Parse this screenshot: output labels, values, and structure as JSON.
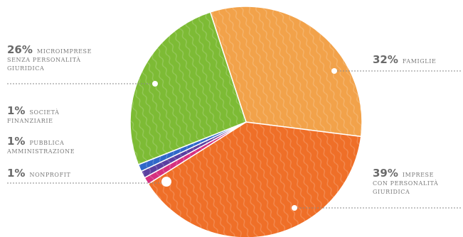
{
  "chart_data": {
    "type": "pie",
    "title": "",
    "slices": [
      {
        "pct": "32%",
        "value": 32,
        "label": "FAMIGLIE",
        "color": "#f2a24a"
      },
      {
        "pct": "39%",
        "value": 39,
        "label": "IMPRESE CON PERSONALITÀ GIURIDICA",
        "color": "#ef6f28"
      },
      {
        "pct": "1%",
        "value": 1,
        "label": "NONPROFIT",
        "color": "#d6307f"
      },
      {
        "pct": "1%",
        "value": 1,
        "label": "PUBBLICA AMMINISTRAZIONE",
        "color": "#5b3fa0"
      },
      {
        "pct": "1%",
        "value": 1,
        "label": "SOCIETÀ FINANZIARIE",
        "color": "#2f68c9"
      },
      {
        "pct": "26%",
        "value": 26,
        "label": "MICROIMPRESE SENZA PERSONALITÀ GIURIDICA",
        "color": "#7dbb35"
      }
    ]
  },
  "labels": {
    "micro": {
      "pct": "26%",
      "line1": "MICROIMPRESE",
      "line2": "SENZA PERSONALITÀ",
      "line3": "GIURIDICA"
    },
    "finanz": {
      "pct": "1%",
      "line1": "SOCIETÀ",
      "line2": "FINANZIARIE"
    },
    "pa": {
      "pct": "1%",
      "line1": "PUBBLICA",
      "line2": "AMMINISTRAZIONE"
    },
    "nonprofit": {
      "pct": "1%",
      "line1": "NONPROFIT"
    },
    "famiglie": {
      "pct": "32%",
      "line1": "FAMIGLIE"
    },
    "imprese": {
      "pct": "39%",
      "line1": "IMPRESE",
      "line2": "CON PERSONALITÀ",
      "line3": "GIURIDICA"
    }
  }
}
